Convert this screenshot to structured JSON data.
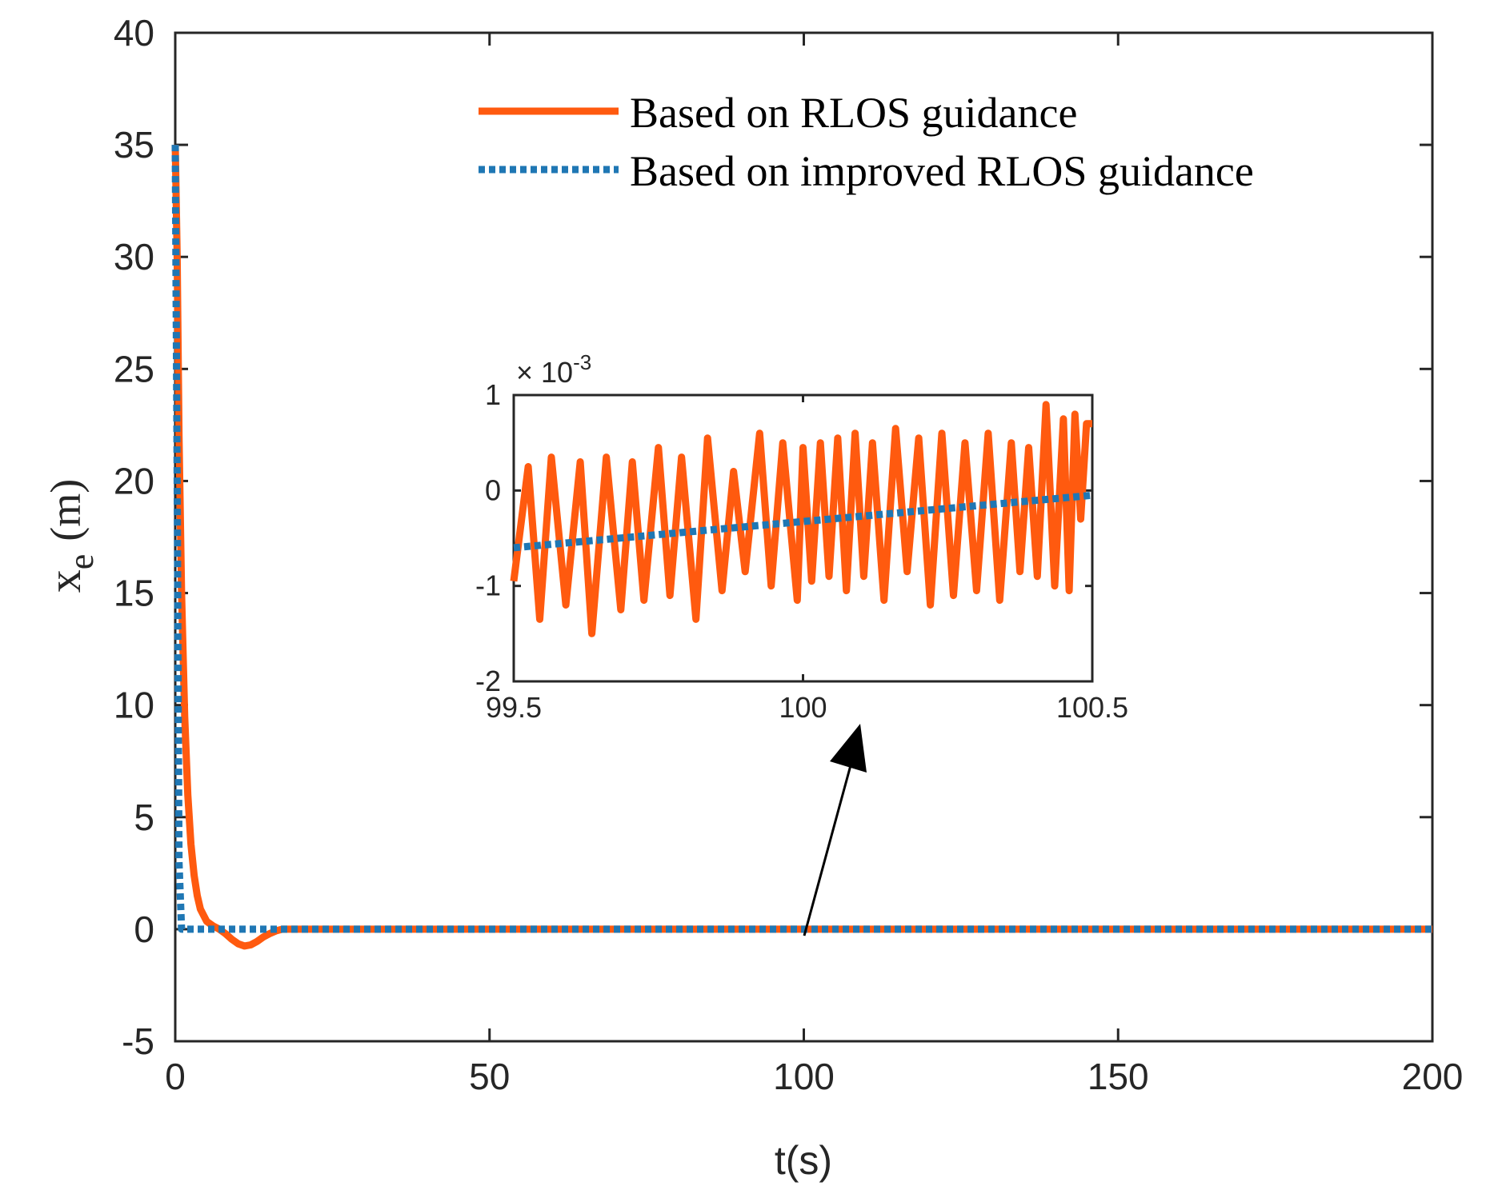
{
  "colors": {
    "rlos": "#FF5A0F",
    "improved": "#1F77B4",
    "axis": "#262626",
    "arrow": "#000000"
  },
  "chart_data": [
    {
      "type": "line",
      "name": "main",
      "title": "",
      "xlabel": "t(s)",
      "ylabel_main": "x",
      "ylabel_sub": "e",
      "ylabel_unit": "(m)",
      "xlim": [
        0,
        200
      ],
      "ylim": [
        -5,
        40
      ],
      "xticks": [
        0,
        50,
        100,
        150,
        200
      ],
      "yticks": [
        -5,
        0,
        5,
        10,
        15,
        20,
        25,
        30,
        35,
        40
      ],
      "grid": false,
      "legend": {
        "location": "top-right",
        "entries": [
          "Based on RLOS guidance",
          "Based on improved RLOS guidance"
        ]
      },
      "series": [
        {
          "name": "Based on RLOS guidance",
          "style": "solid",
          "x": [
            0,
            0.3,
            0.6,
            1.0,
            1.5,
            2.0,
            2.5,
            3.0,
            3.5,
            4.0,
            5.0,
            6.0,
            7.0,
            8.0,
            9.0,
            10.0,
            11.0,
            12.0,
            13.0,
            14.0,
            15.0,
            16.0,
            17.0,
            20.0,
            50.0,
            100.0,
            150.0,
            200.0
          ],
          "y": [
            35.0,
            30.0,
            22.0,
            15.0,
            9.5,
            6.0,
            3.8,
            2.4,
            1.5,
            0.9,
            0.35,
            0.15,
            0.0,
            -0.2,
            -0.45,
            -0.65,
            -0.75,
            -0.7,
            -0.55,
            -0.35,
            -0.2,
            -0.08,
            0.0,
            0.0,
            0.0,
            0.0,
            0.0,
            0.0
          ]
        },
        {
          "name": "Based on improved RLOS guidance",
          "style": "dotted",
          "x": [
            0,
            0.3,
            0.6,
            1.0,
            5.0,
            50.0,
            100.0,
            150.0,
            200.0
          ],
          "y": [
            35.0,
            20.0,
            3.0,
            0.0,
            0.0,
            0.0,
            0.0,
            0.0,
            0.0
          ]
        }
      ]
    },
    {
      "type": "line",
      "name": "inset",
      "title": "",
      "xlabel": "",
      "ylabel": "",
      "exponent_label": "× 10",
      "exponent_power": "-3",
      "xlim": [
        99.5,
        100.5
      ],
      "ylim": [
        -2,
        1
      ],
      "xticks": [
        99.5,
        100,
        100.5
      ],
      "xtick_labels": [
        "99.5",
        "100",
        "100.5"
      ],
      "yticks": [
        -2,
        -1,
        0,
        1
      ],
      "grid": false,
      "series": [
        {
          "name": "Based on RLOS guidance",
          "style": "solid",
          "x": [
            99.5,
            99.525,
            99.545,
            99.565,
            99.59,
            99.615,
            99.635,
            99.66,
            99.685,
            99.705,
            99.725,
            99.75,
            99.77,
            99.79,
            99.815,
            99.835,
            99.86,
            99.88,
            99.9,
            99.925,
            99.945,
            99.965,
            99.99,
            100.0,
            100.015,
            100.03,
            100.045,
            100.06,
            100.075,
            100.09,
            100.105,
            100.12,
            100.14,
            100.16,
            100.18,
            100.2,
            100.22,
            100.24,
            100.26,
            100.28,
            100.3,
            100.32,
            100.34,
            100.36,
            100.375,
            100.39,
            100.405,
            100.42,
            100.435,
            100.45,
            100.46,
            100.47,
            100.48,
            100.49,
            100.5
          ],
          "y": [
            -0.95,
            0.25,
            -1.35,
            0.35,
            -1.2,
            0.3,
            -1.5,
            0.35,
            -1.25,
            0.3,
            -1.15,
            0.45,
            -1.1,
            0.35,
            -1.35,
            0.55,
            -1.05,
            0.2,
            -0.85,
            0.6,
            -1.0,
            0.5,
            -1.15,
            0.45,
            -0.95,
            0.5,
            -0.9,
            0.55,
            -1.05,
            0.6,
            -0.9,
            0.5,
            -1.15,
            0.65,
            -0.85,
            0.55,
            -1.2,
            0.6,
            -1.1,
            0.5,
            -1.05,
            0.6,
            -1.15,
            0.5,
            -0.85,
            0.45,
            -0.9,
            0.9,
            -1.0,
            0.75,
            -1.05,
            0.8,
            -0.3,
            0.7,
            0.7
          ]
        },
        {
          "name": "Based on improved RLOS guidance",
          "style": "dotted",
          "x": [
            99.5,
            100.5
          ],
          "y": [
            -0.6,
            -0.05
          ]
        }
      ]
    }
  ]
}
